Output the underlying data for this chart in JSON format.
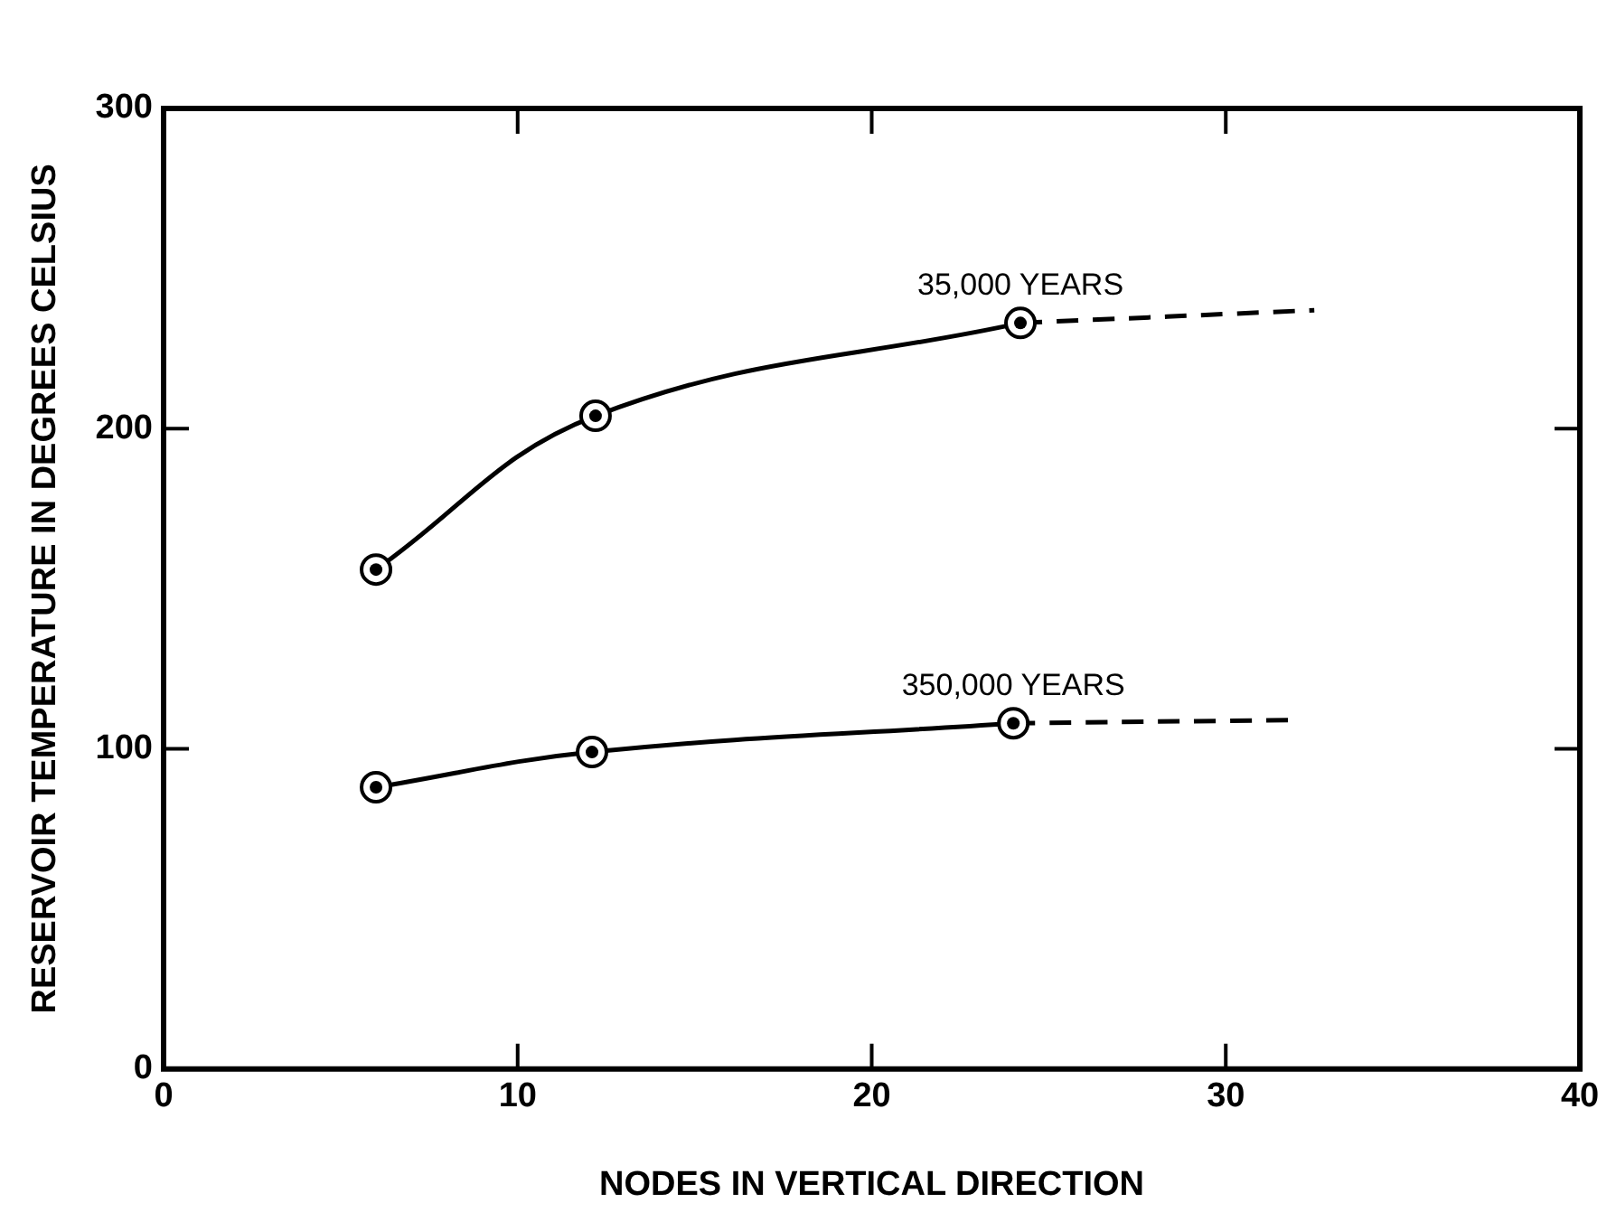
{
  "chart_data": {
    "type": "line",
    "xlabel": "NODES IN VERTICAL DIRECTION",
    "ylabel": "RESERVOIR TEMPERATURE IN DEGREES CELSIUS",
    "xlim": [
      0,
      40
    ],
    "xticks": [
      0,
      10,
      20,
      30,
      40
    ],
    "ylim": [
      0,
      300
    ],
    "yticks": [
      0,
      100,
      200,
      300
    ],
    "grid": false,
    "legend": false,
    "series": [
      {
        "name": "35,000 YEARS",
        "color": "#000000",
        "x": [
          6,
          12.2,
          24.2
        ],
        "values": [
          156,
          204,
          233
        ],
        "line_style": "solid",
        "marker": "circle"
      },
      {
        "color": "#000000",
        "x": [
          24.2,
          32.5
        ],
        "values": [
          233,
          237
        ],
        "line_style": "dashed"
      },
      {
        "name": "350,000 YEARS",
        "color": "#000000",
        "x": [
          6,
          12.1,
          24
        ],
        "values": [
          88,
          99,
          108
        ],
        "line_style": "solid",
        "marker": "circle"
      },
      {
        "color": "#000000",
        "x": [
          24,
          31.9
        ],
        "values": [
          108,
          109
        ],
        "line_style": "dashed"
      }
    ]
  }
}
